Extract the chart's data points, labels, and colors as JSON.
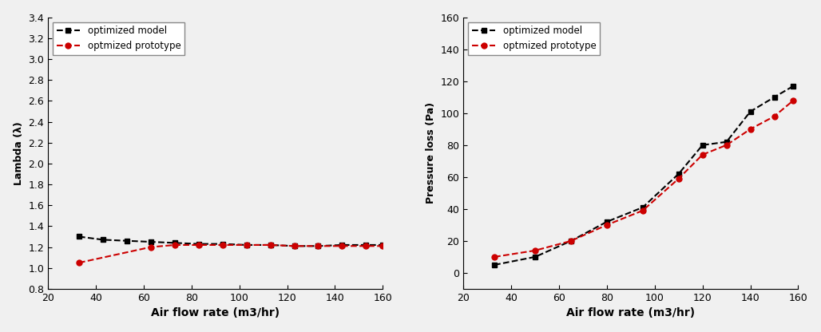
{
  "left": {
    "xlabel": "Air flow rate (m3/hr)",
    "ylabel": "Lambda (λ)",
    "xlim": [
      20,
      160
    ],
    "ylim": [
      0.8,
      3.4
    ],
    "yticks": [
      0.8,
      1.0,
      1.2,
      1.4,
      1.6,
      1.8,
      2.0,
      2.2,
      2.4,
      2.6,
      2.8,
      3.0,
      3.2,
      3.4
    ],
    "xticks": [
      20,
      40,
      60,
      80,
      100,
      120,
      140,
      160
    ],
    "model_x": [
      33,
      43,
      53,
      63,
      73,
      83,
      93,
      103,
      113,
      123,
      133,
      143,
      153,
      160
    ],
    "model_y": [
      1.3,
      1.27,
      1.26,
      1.25,
      1.24,
      1.23,
      1.23,
      1.22,
      1.22,
      1.21,
      1.21,
      1.22,
      1.22,
      1.22
    ],
    "proto_x": [
      33,
      63,
      73,
      83,
      93,
      103,
      113,
      123,
      133,
      143,
      153,
      160
    ],
    "proto_y": [
      1.05,
      1.2,
      1.22,
      1.22,
      1.22,
      1.22,
      1.22,
      1.21,
      1.21,
      1.21,
      1.21,
      1.21
    ],
    "legend1": "optimized model",
    "legend2": "optmized prototype",
    "model_color": "#000000",
    "proto_color": "#cc0000"
  },
  "right": {
    "xlabel": "Air flow rate (m3/hr)",
    "ylabel": "Pressure loss (Pa)",
    "xlim": [
      20,
      160
    ],
    "ylim": [
      -10,
      160
    ],
    "yticks": [
      0,
      20,
      40,
      60,
      80,
      100,
      120,
      140,
      160
    ],
    "xticks": [
      20,
      40,
      60,
      80,
      100,
      120,
      140,
      160
    ],
    "model_x": [
      33,
      50,
      65,
      80,
      95,
      110,
      120,
      130,
      140,
      150,
      158
    ],
    "model_y": [
      5,
      10,
      20,
      32,
      41,
      62,
      80,
      82,
      101,
      110,
      117
    ],
    "proto_x": [
      33,
      50,
      65,
      80,
      95,
      110,
      120,
      130,
      140,
      150,
      158
    ],
    "proto_y": [
      10,
      14,
      20,
      30,
      39,
      59,
      74,
      80,
      90,
      98,
      108
    ],
    "legend1": "optimized model",
    "legend2": "optmized prototype",
    "model_color": "#000000",
    "proto_color": "#cc0000"
  }
}
